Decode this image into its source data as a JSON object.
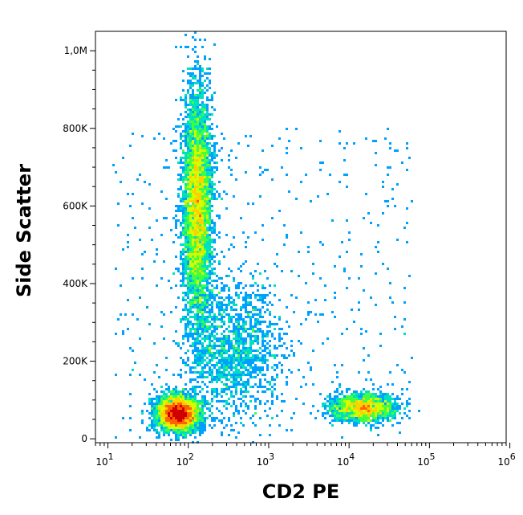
{
  "chart_data": {
    "type": "scatter",
    "subtype": "flow-cytometry-density-dot-plot",
    "xlabel": "CD2 PE",
    "ylabel": "Side Scatter",
    "x_scale": "log",
    "xlim": [
      7,
      900000
    ],
    "ylim": [
      -10000,
      1050000
    ],
    "x_ticks": [
      {
        "value": 10,
        "base": "10",
        "exp": "1"
      },
      {
        "value": 100,
        "base": "10",
        "exp": "2"
      },
      {
        "value": 1000,
        "base": "10",
        "exp": "3"
      },
      {
        "value": 10000,
        "base": "10",
        "exp": "4"
      },
      {
        "value": 100000,
        "base": "10",
        "exp": "5"
      },
      {
        "value": 1000000,
        "base": "10",
        "exp": "6"
      }
    ],
    "y_ticks": [
      {
        "value": 0,
        "label": "0"
      },
      {
        "value": 200000,
        "label": "200K"
      },
      {
        "value": 400000,
        "label": "400K"
      },
      {
        "value": 600000,
        "label": "600K"
      },
      {
        "value": 800000,
        "label": "800K"
      },
      {
        "value": 1000000,
        "label": "1,0M"
      }
    ],
    "populations": [
      {
        "x_center": 75,
        "y_center": 65000,
        "x_spread_decades": 0.13,
        "y_spread": 22000,
        "events": 3800
      },
      {
        "x_center": 130,
        "y_center": 600000,
        "x_spread_decades": 0.09,
        "y_spread": 150000,
        "events": 5200
      },
      {
        "x_center": 15000,
        "y_center": 80000,
        "x_spread_decades": 0.2,
        "y_spread": 18000,
        "events": 1800
      },
      {
        "x_center": 350,
        "y_center": 230000,
        "x_spread_decades": 0.3,
        "y_spread": 90000,
        "events": 1500
      }
    ],
    "color_scale": [
      "#0000ff",
      "#00a0ff",
      "#00e0c0",
      "#40ff40",
      "#d0ff00",
      "#ffd000",
      "#ff6000",
      "#d00000"
    ],
    "grid": false
  }
}
